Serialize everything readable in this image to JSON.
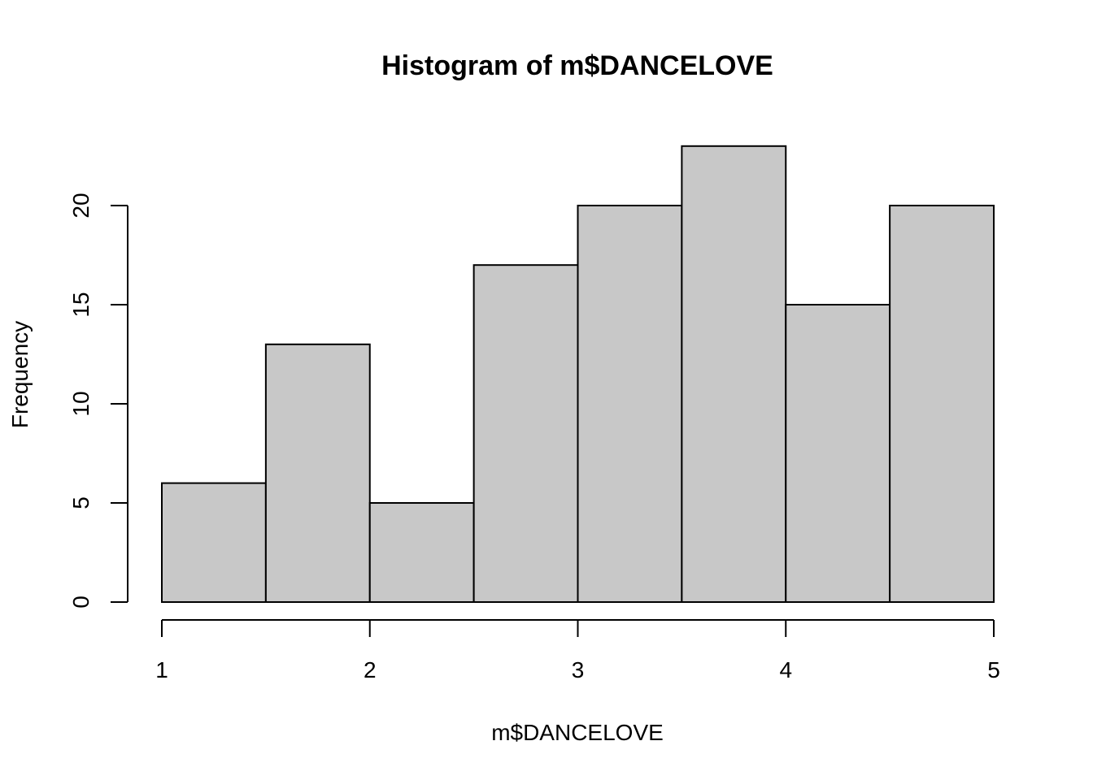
{
  "chart_data": {
    "type": "bar",
    "title": "Histogram of m$DANCELOVE",
    "xlabel": "m$DANCELOVE",
    "ylabel": "Frequency",
    "bins": [
      {
        "start": 1.0,
        "end": 1.5,
        "count": 6
      },
      {
        "start": 1.5,
        "end": 2.0,
        "count": 13
      },
      {
        "start": 2.0,
        "end": 2.5,
        "count": 5
      },
      {
        "start": 2.5,
        "end": 3.0,
        "count": 17
      },
      {
        "start": 3.0,
        "end": 3.5,
        "count": 20
      },
      {
        "start": 3.5,
        "end": 4.0,
        "count": 23
      },
      {
        "start": 4.0,
        "end": 4.5,
        "count": 15
      },
      {
        "start": 4.5,
        "end": 5.0,
        "count": 20
      }
    ],
    "xlim": [
      1,
      5
    ],
    "ylim": [
      0,
      23
    ],
    "x_ticks": [
      1,
      2,
      3,
      4,
      5
    ],
    "x_tick_labels": [
      "1",
      "2",
      "3",
      "4",
      "5"
    ],
    "y_ticks": [
      0,
      5,
      10,
      15,
      20
    ],
    "y_tick_labels": [
      "0",
      "5",
      "10",
      "15",
      "20"
    ],
    "bar_fill": "#c8c8c8",
    "bar_stroke": "#000000",
    "grid": false
  }
}
